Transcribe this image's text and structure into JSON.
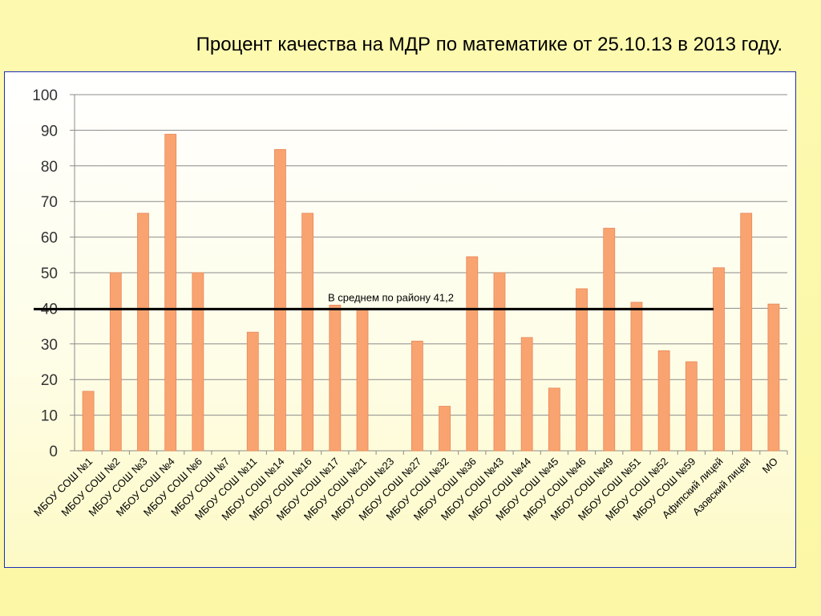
{
  "slide": {
    "title": "Процент качества на МДР по математике от 25.10.13 в 2013 году."
  },
  "colors": {
    "bar": "#f9a470",
    "bar_stroke": "#e8875a",
    "grid": "#8c8c8c",
    "avg_line": "#000000"
  },
  "chart_data": {
    "type": "bar",
    "title": "",
    "xlabel": "",
    "ylabel": "",
    "ylim": [
      0,
      100
    ],
    "yticks": [
      0,
      10,
      20,
      30,
      40,
      50,
      60,
      70,
      80,
      90,
      100
    ],
    "grid": true,
    "categories": [
      "МБОУ СОШ №1",
      "МБОУ СОШ №2",
      "МБОУ СОШ №3",
      "МБОУ СОШ №4",
      "МБОУ СОШ №6",
      "МБОУ СОШ №7",
      "МБОУ СОШ №11",
      "МБОУ СОШ №14",
      "МБОУ СОШ №16",
      "МБОУ СОШ №17",
      "МБОУ СОШ №21",
      "МБОУ СОШ №23",
      "МБОУ СОШ №27",
      "МБОУ СОШ №32",
      "МБОУ СОШ №36",
      "МБОУ СОШ №43",
      "МБОУ СОШ №44",
      "МБОУ СОШ №45",
      "МБОУ СОШ №46",
      "МБОУ СОШ №49",
      "МБОУ СОШ №51",
      "МБОУ СОШ №52",
      "МБОУ СОШ №59",
      "Афипский лицей",
      "Азовский лицей",
      "МО"
    ],
    "values": [
      16.7,
      50,
      66.7,
      88.9,
      50,
      0,
      33.3,
      84.6,
      66.7,
      40.9,
      40,
      0,
      30.8,
      12.5,
      54.5,
      50,
      31.8,
      17.6,
      45.5,
      62.5,
      41.7,
      28.1,
      25,
      51.4,
      66.7,
      41.2
    ],
    "reference_line": {
      "value": 41.2,
      "label": "В среднем по району 41,2"
    }
  }
}
